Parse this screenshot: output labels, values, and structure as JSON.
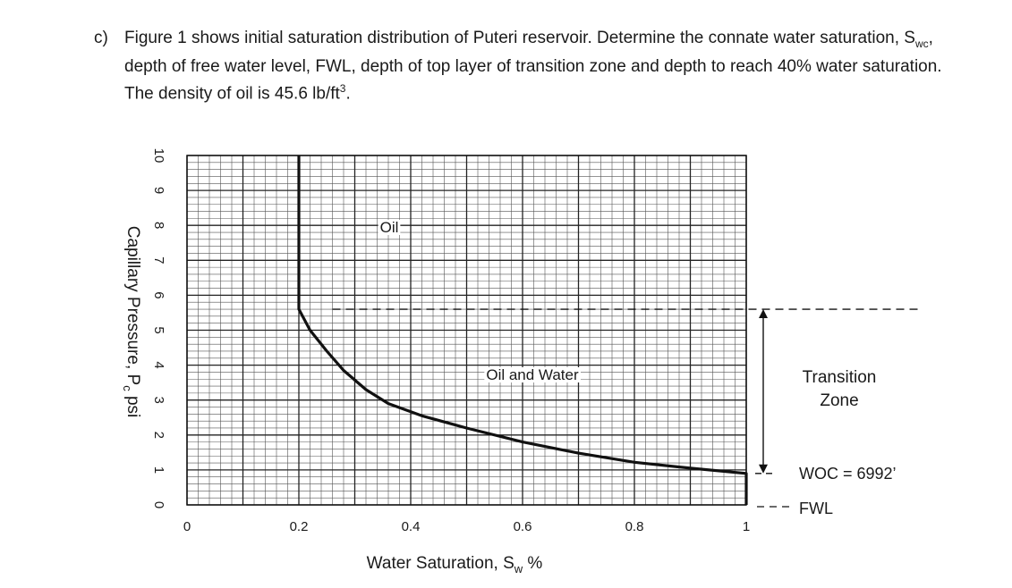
{
  "question": {
    "label": "c)",
    "text_before": "Figure 1 shows initial saturation distribution of Puteri reservoir. Determine the connate water saturation, S",
    "text_sub": "wc",
    "text_middle": ", depth of free water level, FWL, depth of top layer of transition zone and depth to reach 40% water saturation. The density of oil is 45.6 lb/ft",
    "text_sup": "3",
    "text_after": "."
  },
  "chart_data": {
    "type": "line",
    "title": "",
    "xlabel": {
      "main": "Water Saturation, S",
      "sub": "w",
      "unit": " %"
    },
    "ylabel": {
      "main": "Capillary Pressure, P",
      "sub": "c",
      "unit": " psi"
    },
    "xlim": [
      0,
      1
    ],
    "ylim": [
      0,
      10
    ],
    "x_ticks": [
      "0",
      "0.2",
      "0.4",
      "0.6",
      "0.8",
      "1"
    ],
    "y_ticks": [
      "0",
      "1",
      "2",
      "3",
      "4",
      "5",
      "6",
      "7",
      "8",
      "9",
      "10"
    ],
    "grid": true,
    "series": [
      {
        "name": "",
        "color": "#111111",
        "points": [
          [
            0.2,
            10
          ],
          [
            0.2,
            5.6
          ],
          [
            0.22,
            5.0
          ],
          [
            0.25,
            4.4
          ],
          [
            0.28,
            3.85
          ],
          [
            0.32,
            3.3
          ],
          [
            0.36,
            2.9
          ],
          [
            0.42,
            2.55
          ],
          [
            0.5,
            2.2
          ],
          [
            0.6,
            1.8
          ],
          [
            0.7,
            1.48
          ],
          [
            0.8,
            1.22
          ],
          [
            0.9,
            1.05
          ],
          [
            1.0,
            0.9
          ],
          [
            1.0,
            0
          ]
        ]
      }
    ],
    "annotations": {
      "oil": "Oil",
      "oil_and_water": "Oil and Water",
      "transition_zone": [
        "Transition",
        "Zone"
      ],
      "woc": "WOC = 6992’",
      "fwl": "FWL",
      "transition_top_pc": 5.6,
      "woc_pc": 0.9
    }
  }
}
